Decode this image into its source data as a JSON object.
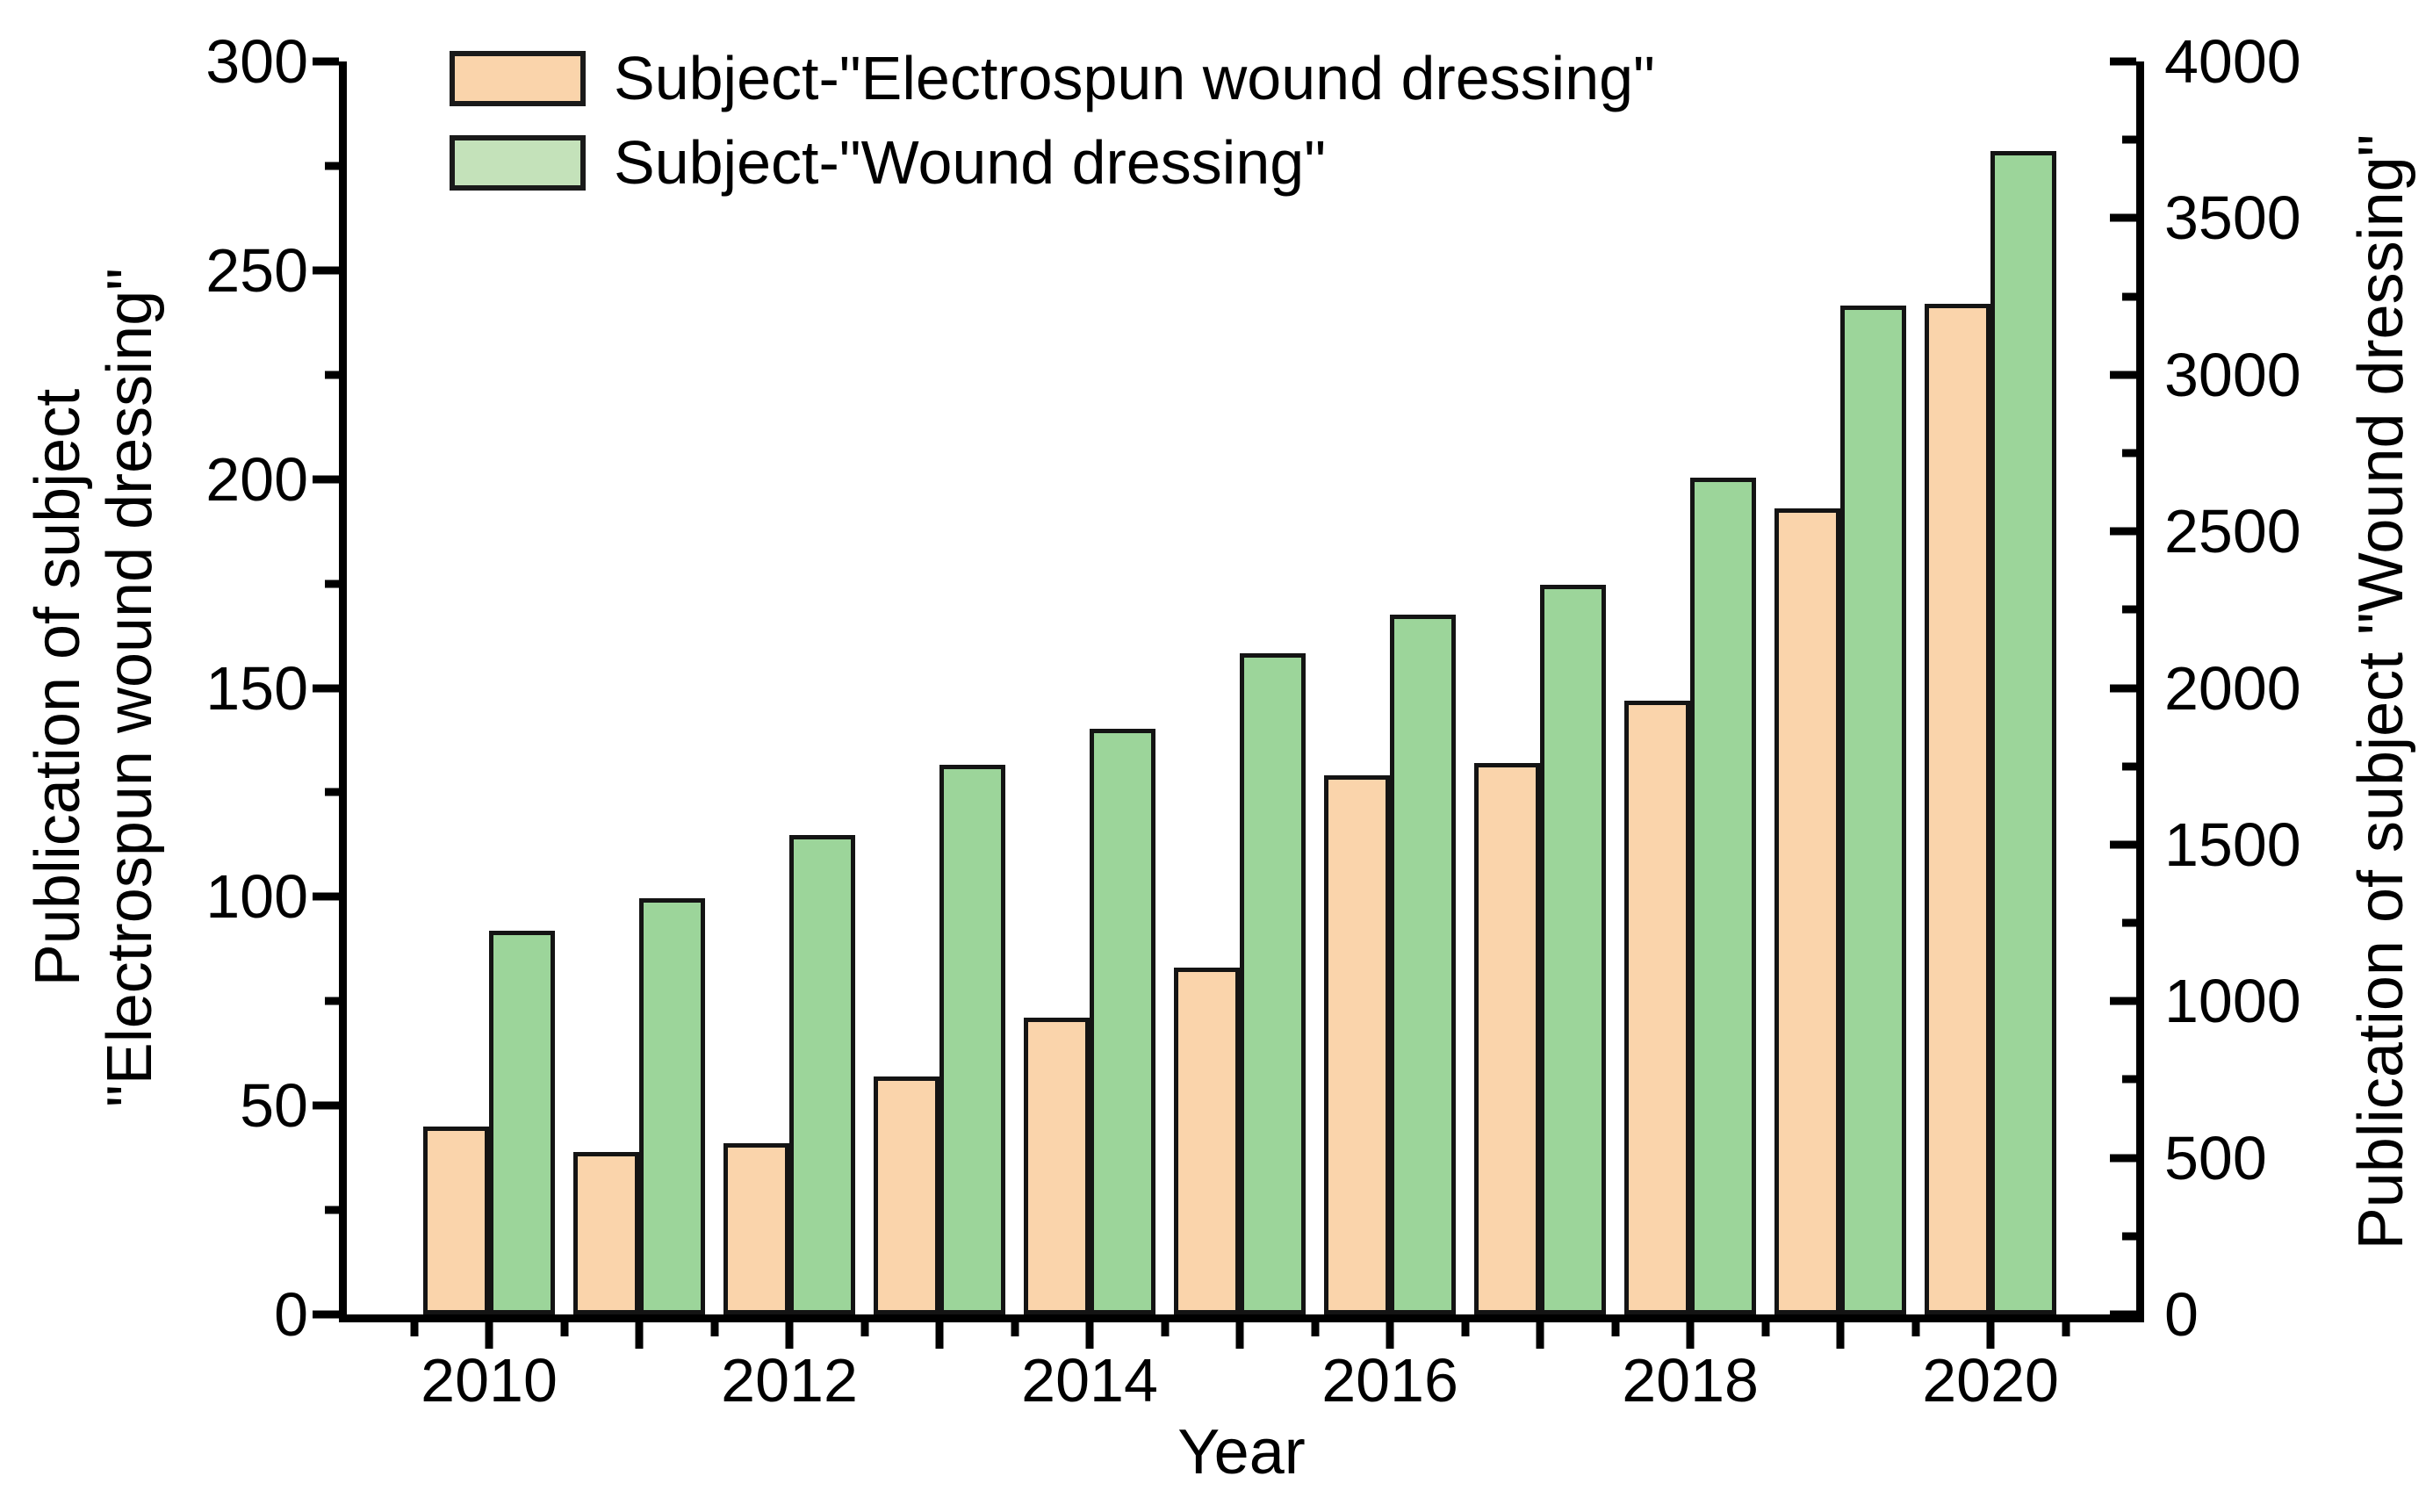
{
  "figure": {
    "background": "#ffffff",
    "axis_color": "#000000",
    "bar_border_color": "#141414"
  },
  "legend": {
    "position": "top-left-inside",
    "items": [
      {
        "label": "Subject-\"Electrospun wound dressing\"",
        "swatch_color": "#FAD4AB"
      },
      {
        "label": "Subject-\"Wound dressing\"",
        "swatch_color": "#C4E2BA"
      }
    ]
  },
  "chart_data": {
    "type": "bar",
    "title": "",
    "xlabel": "Year",
    "ylabel_left_lines": [
      "Publication of subject",
      "\"Electrospun wound dressing\""
    ],
    "ylabel_right": "Publication of subject \"Wound dressing\"",
    "categories": [
      2010,
      2011,
      2012,
      2013,
      2014,
      2015,
      2016,
      2017,
      2018,
      2019,
      2020
    ],
    "series": [
      {
        "name": "Subject-\"Electrospun wound dressing\"",
        "axis": "left",
        "color": "#FAD4AB",
        "values": [
          45,
          39,
          41,
          57,
          71,
          83,
          129,
          132,
          147,
          193,
          242
        ]
      },
      {
        "name": "Subject-\"Wound dressing\"",
        "axis": "right",
        "color": "#9CD59A",
        "values": [
          1225,
          1330,
          1530,
          1755,
          1870,
          2110,
          2235,
          2330,
          2670,
          3220,
          3715
        ]
      }
    ],
    "left_axis": {
      "min": 0,
      "max": 300,
      "major_ticks": [
        0,
        50,
        100,
        150,
        200,
        250,
        300
      ],
      "minor_ticks": [
        25,
        75,
        125,
        175,
        225,
        275
      ]
    },
    "right_axis": {
      "min": 0,
      "max": 4000,
      "major_ticks": [
        0,
        500,
        1000,
        1500,
        2000,
        2500,
        3000,
        3500,
        4000
      ],
      "minor_ticks": [
        250,
        750,
        1250,
        1750,
        2250,
        2750,
        3250,
        3750
      ]
    },
    "x_axis": {
      "labeled_years": [
        2010,
        2012,
        2014,
        2016,
        2018,
        2020
      ],
      "minor_ticks_at": "half-year boundaries"
    },
    "grid": false,
    "legend_position": "top-left"
  }
}
